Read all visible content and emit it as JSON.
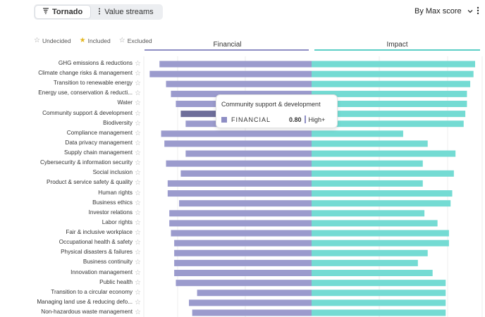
{
  "toolbar": {
    "tabs": [
      {
        "label": "Tornado",
        "icon": "tornado-icon",
        "active": true
      },
      {
        "label": "Value streams",
        "icon": "value-streams-icon",
        "active": false
      }
    ],
    "sort_label": "By Max score",
    "more_icon": "more-vertical-icon"
  },
  "legend": [
    {
      "label": "Undecided",
      "icon": "star-outline-icon"
    },
    {
      "label": "Included",
      "icon": "star-filled-icon"
    },
    {
      "label": "Excluded",
      "icon": "star-outline-icon"
    }
  ],
  "axis": {
    "left_label": "Financial",
    "right_label": "Impact"
  },
  "colors": {
    "financial": "#9b9bcd",
    "financial_highlight": "#6e6e9a",
    "impact": "#74dbd3",
    "financial_line": "#8e8ec4",
    "impact_line": "#5ccfc6"
  },
  "tooltip": {
    "title": "Community support & development",
    "series": "FINANCIAL",
    "value": "0.80",
    "level": "High+"
  },
  "chart_data": {
    "type": "bar",
    "layout": "tornado",
    "categories": [
      "GHG emissions & reductions",
      "Climate change risks & management",
      "Transition to renewable energy",
      "Energy use, conservation & reducti...",
      "Water",
      "Community support & development",
      "Biodiversity",
      "Compliance management",
      "Data privacy management",
      "Supply chain management",
      "Cybersecurity & information security",
      "Social inclusion",
      "Product & service safety & quality",
      "Human rights",
      "Business ethics",
      "Investor relations",
      "Labor rights",
      "Fair & inclusive workplace",
      "Occupational health & safety",
      "Physical disasters & failures",
      "Business continuity",
      "Innovation management",
      "Public health",
      "Transition to a circular economy",
      "Managing land use & reducing defo...",
      "Non-hazardous waste management"
    ],
    "series": [
      {
        "name": "Financial",
        "values": [
          0.93,
          0.99,
          0.89,
          0.86,
          0.83,
          0.8,
          0.77,
          0.92,
          0.9,
          0.77,
          0.89,
          0.8,
          0.88,
          0.88,
          0.81,
          0.87,
          0.87,
          0.86,
          0.84,
          0.84,
          0.84,
          0.84,
          0.83,
          0.7,
          0.75,
          0.73
        ]
      },
      {
        "name": "Impact",
        "values": [
          1.0,
          0.99,
          0.97,
          0.95,
          0.95,
          0.94,
          0.93,
          0.56,
          0.71,
          0.88,
          0.68,
          0.87,
          0.68,
          0.86,
          0.85,
          0.69,
          0.77,
          0.84,
          0.84,
          0.71,
          0.65,
          0.74,
          0.82,
          0.82,
          0.82,
          0.82
        ]
      }
    ],
    "highlight": {
      "category": "Community support & development",
      "series": "Financial"
    },
    "xlim": [
      -1,
      1
    ],
    "grid": true,
    "legend_position": "top-left"
  }
}
